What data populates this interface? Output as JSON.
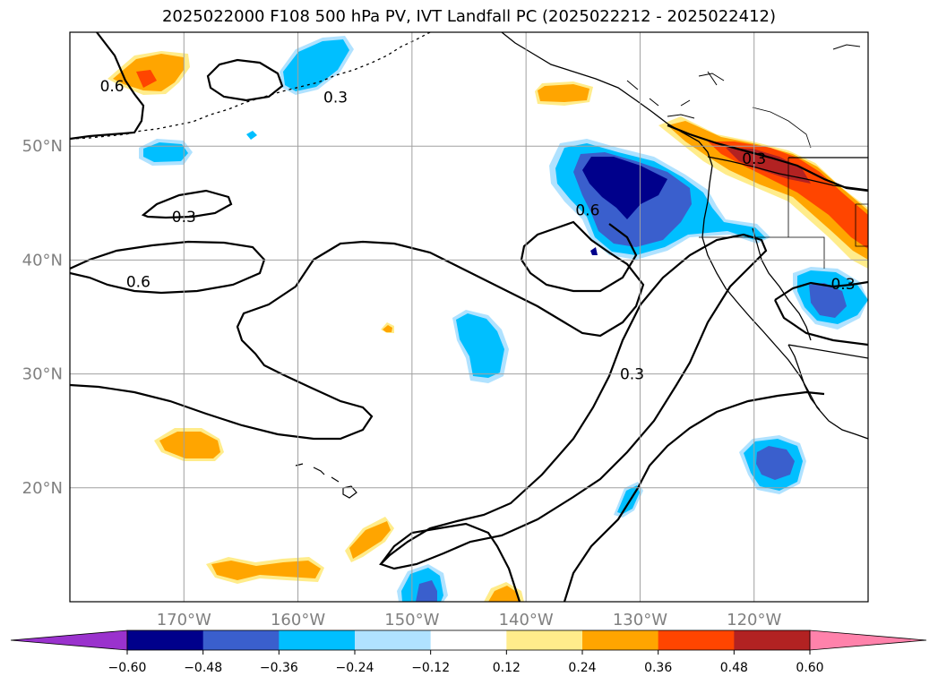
{
  "title": "2025022000 F108 500 hPa PV, IVT Landfall PC (2025022212 - 2025022412)",
  "map": {
    "lon_range": [
      -180,
      -110
    ],
    "lat_range": [
      10,
      60
    ],
    "lon_ticks": [
      {
        "value": -170,
        "label": "170°W"
      },
      {
        "value": -160,
        "label": "160°W"
      },
      {
        "value": -150,
        "label": "150°W"
      },
      {
        "value": -140,
        "label": "140°W"
      },
      {
        "value": -130,
        "label": "130°W"
      },
      {
        "value": -120,
        "label": "120°W"
      }
    ],
    "lat_ticks": [
      {
        "value": 20,
        "label": "20°N"
      },
      {
        "value": 30,
        "label": "30°N"
      },
      {
        "value": 40,
        "label": "40°N"
      },
      {
        "value": 50,
        "label": "50°N"
      }
    ],
    "contour_labels": [
      {
        "text": "0.3",
        "lon": -156.7,
        "lat": 54.3
      },
      {
        "text": "0.6",
        "lon": -176.3,
        "lat": 55.3
      },
      {
        "text": "0.3",
        "lon": -170.0,
        "lat": 43.8
      },
      {
        "text": "0.6",
        "lon": -174.0,
        "lat": 38.1
      },
      {
        "text": "0.6",
        "lon": -134.6,
        "lat": 44.4
      },
      {
        "text": "0.3",
        "lon": -130.7,
        "lat": 30.0
      },
      {
        "text": "0.3",
        "lon": -120.0,
        "lat": 48.9
      },
      {
        "text": "0.3",
        "lon": -112.2,
        "lat": 37.9
      }
    ]
  },
  "colorbar": {
    "ticks": [
      "−0.60",
      "−0.48",
      "−0.36",
      "−0.24",
      "−0.12",
      "0.12",
      "0.24",
      "0.36",
      "0.48",
      "0.60"
    ],
    "under_color": "#9a32cd",
    "over_color": "#ff82ab",
    "colors": [
      "#00008b",
      "#3a5fcd",
      "#00bfff",
      "#b0e2ff",
      "#ffffff",
      "#ffec8b",
      "#ffa500",
      "#ff4500",
      "#b22222"
    ]
  }
}
